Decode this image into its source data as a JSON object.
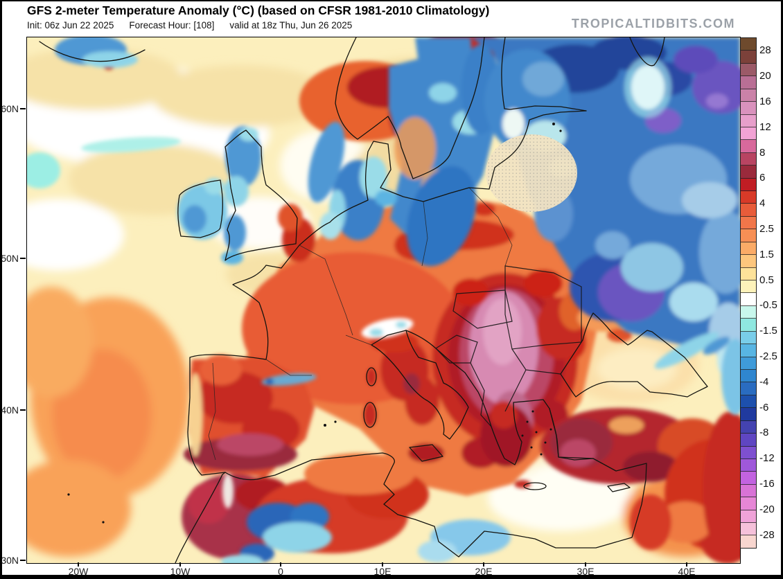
{
  "header": {
    "title": "GFS 2-meter Temperature Anomaly (°C) (based on CFSR 1981-2010 Climatology)",
    "init": "Init: 06z Jun 22 2025",
    "forecast_hour": "Forecast Hour: [108]",
    "valid": "valid at 18z Thu, Jun 26 2025",
    "watermark": "TROPICALTIDBITS.COM"
  },
  "map": {
    "model": "GFS",
    "variable": "2-meter Temperature Anomaly",
    "unit": "°C",
    "lat_labels": [
      "60N",
      "50N",
      "40N",
      "30N"
    ],
    "lon_labels": [
      "20W",
      "10W",
      "0",
      "10E",
      "20E",
      "30E",
      "40E"
    ]
  },
  "colorbar": {
    "unit": "°C",
    "tick_labels": [
      "28",
      "20",
      "16",
      "12",
      "8",
      "6",
      "4",
      "2.5",
      "1.5",
      "0.5",
      "-0.5",
      "-1.5",
      "-2.5",
      "-4",
      "-6",
      "-8",
      "-12",
      "-16",
      "-20",
      "-28"
    ],
    "cell_colors": [
      "#6e4a2d",
      "#7c413a",
      "#9b5a68",
      "#b96f95",
      "#ca82a8",
      "#d992bd",
      "#e79fcb",
      "#f2a3d5",
      "#d8699c",
      "#b84462",
      "#9a2a3c",
      "#c01d24",
      "#d83a28",
      "#e85c3a",
      "#f1764a",
      "#f78f55",
      "#fbab67",
      "#fdc67d",
      "#fde29a",
      "#fdf2ba",
      "#ffffff",
      "#c8f7ec",
      "#8fe8e0",
      "#79cde9",
      "#58b5e3",
      "#3f9bd9",
      "#2f86cf",
      "#2a6cc0",
      "#1d50ad",
      "#203a9f",
      "#4443b0",
      "#5f46c2",
      "#7e50d0",
      "#9f58da",
      "#c263e0",
      "#d873d6",
      "#e687d6",
      "#efa3d8",
      "#f5c1da",
      "#f8d6cf"
    ]
  }
}
